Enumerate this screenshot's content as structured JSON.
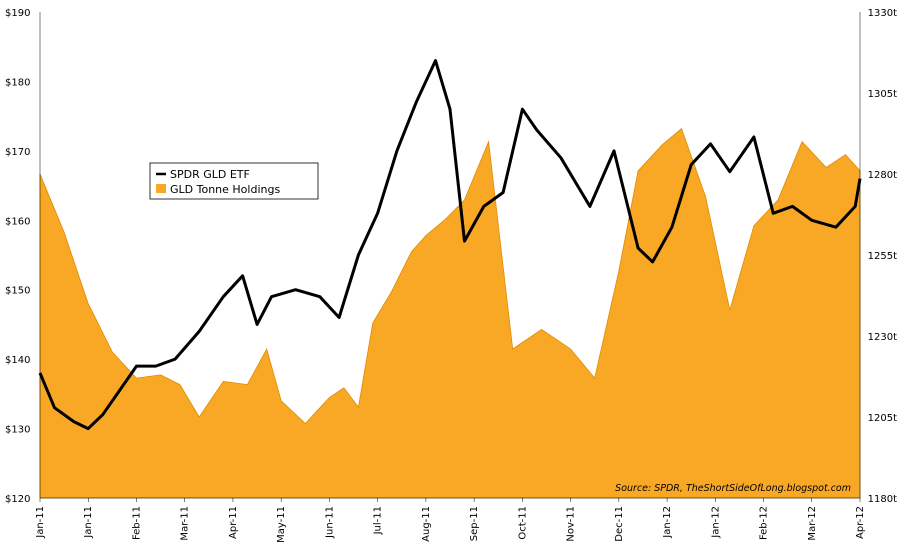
{
  "chart_data": {
    "type": "line",
    "title": "",
    "x_ticks": [
      "Jan-11",
      "Jan-11",
      "Feb-11",
      "Mar-11",
      "Apr-11",
      "May-11",
      "Jun-11",
      "Jul-11",
      "Aug-11",
      "Sep-11",
      "Oct-11",
      "Nov-11",
      "Dec-11",
      "Jan-12",
      "Jan-12",
      "Feb-12",
      "Mar-12",
      "Apr-12"
    ],
    "y_left": {
      "min": 120,
      "max": 190,
      "ticks": [
        "$120",
        "$130",
        "$140",
        "$150",
        "$160",
        "$170",
        "$180",
        "$190"
      ]
    },
    "y_right": {
      "min": 1180,
      "max": 1330,
      "ticks": [
        "1180t",
        "1205t",
        "1230t",
        "1255t",
        "1280t",
        "1305t",
        "1330t"
      ]
    },
    "legend": {
      "placement": "upper-left",
      "items": [
        "SPDR GLD ETF",
        "GLD Tonne Holdings"
      ]
    },
    "source": "Source: SPDR, TheShortSideOfLong.blogspot.com",
    "colors": {
      "etf": "#000000",
      "holdings": "#F9A825",
      "holdings_stroke": "#E08A00"
    },
    "series": [
      {
        "name": "GLD Tonne Holdings",
        "axis": "right",
        "kind": "area",
        "x": [
          0,
          0.5,
          1,
          1.5,
          2,
          2.5,
          2.9,
          3.3,
          3.8,
          4.3,
          4.7,
          5,
          5.5,
          6,
          6.3,
          6.6,
          6.9,
          7.3,
          7.7,
          8,
          8.4,
          8.8,
          9.3,
          9.8,
          10.4,
          11,
          11.5,
          12,
          12.4,
          12.9,
          13.3,
          13.8,
          14.3,
          14.8,
          15.3,
          15.8,
          16.3,
          16.7,
          17
        ],
        "values": [
          1280,
          1262,
          1240,
          1225,
          1217,
          1218,
          1215,
          1205,
          1216,
          1215,
          1226,
          1210,
          1203,
          1211,
          1214,
          1208,
          1234,
          1244,
          1256,
          1261,
          1266,
          1272,
          1290,
          1226,
          1232,
          1226,
          1217,
          1250,
          1281,
          1289,
          1294,
          1273,
          1238,
          1264,
          1272,
          1290,
          1282,
          1286,
          1281
        ]
      },
      {
        "name": "SPDR GLD ETF",
        "axis": "left",
        "kind": "line",
        "x": [
          0,
          0.3,
          0.7,
          1,
          1.3,
          1.6,
          2,
          2.4,
          2.8,
          3.3,
          3.8,
          4.2,
          4.5,
          4.8,
          5.3,
          5.8,
          6.2,
          6.6,
          7,
          7.4,
          7.8,
          8.2,
          8.5,
          8.8,
          9.2,
          9.6,
          10,
          10.3,
          10.8,
          11.4,
          11.9,
          12.4,
          12.7,
          13.1,
          13.5,
          13.9,
          14.3,
          14.8,
          15.2,
          15.6,
          16,
          16.5,
          16.9,
          17
        ],
        "values": [
          138,
          133,
          131,
          130,
          132,
          135,
          139,
          139,
          140,
          144,
          149,
          152,
          145,
          149,
          150,
          149,
          146,
          155,
          161,
          170,
          177,
          183,
          176,
          157,
          162,
          164,
          176,
          173,
          169,
          162,
          170,
          156,
          154,
          159,
          168,
          171,
          167,
          172,
          161,
          162,
          160,
          159,
          162,
          166
        ]
      }
    ]
  }
}
